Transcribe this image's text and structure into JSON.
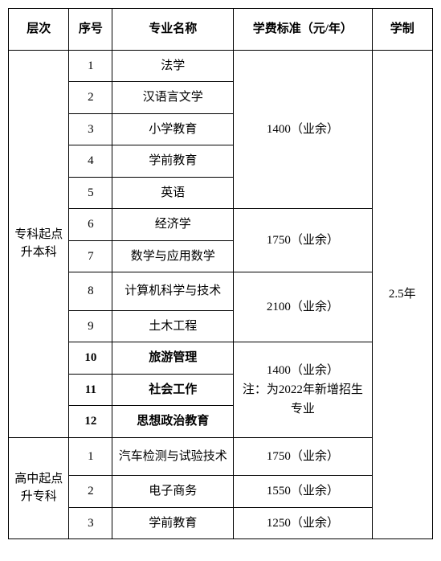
{
  "headers": {
    "level": "层次",
    "seq": "序号",
    "major": "专业名称",
    "fee": "学费标准（元/年）",
    "years": "学制"
  },
  "levels": {
    "level1": "专科起点升本科",
    "level2": "高中起点升专科"
  },
  "seq": {
    "s1": "1",
    "s2": "2",
    "s3": "3",
    "s4": "4",
    "s5": "5",
    "s6": "6",
    "s7": "7",
    "s8": "8",
    "s9": "9",
    "s10": "10",
    "s11": "11",
    "s12": "12",
    "b1": "1",
    "b2": "2",
    "b3": "3"
  },
  "majors": {
    "m1": "法学",
    "m2": "汉语言文学",
    "m3": "小学教育",
    "m4": "学前教育",
    "m5": "英语",
    "m6": "经济学",
    "m7": "数学与应用数学",
    "m8": "计算机科学与技术",
    "m9": "土木工程",
    "m10": "旅游管理",
    "m11": "社会工作",
    "m12": "思想政治教育",
    "b1": "汽车检测与试验技术",
    "b2": "电子商务",
    "b3": "学前教育"
  },
  "fees": {
    "f1": "1400（业余）",
    "f2": "1750（业余）",
    "f3": "2100（业余）",
    "f4_line1": "1400（业余）",
    "f4_line2": "注：为2022年新增招生专业",
    "fb1": "1750（业余）",
    "fb2": "1550（业余）",
    "fb3": "1250（业余）"
  },
  "years": {
    "y1": "2.5年"
  },
  "style": {
    "border_color": "#000000",
    "background": "#ffffff",
    "font_family": "SimSun",
    "base_font_size": 15
  }
}
